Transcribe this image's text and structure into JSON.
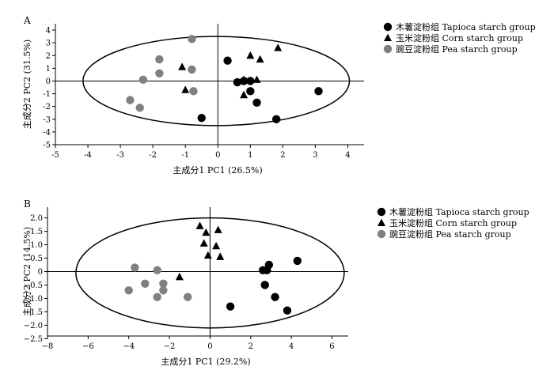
{
  "chart_data": [
    {
      "type": "scatter",
      "panel_label": "A",
      "xlabel": "主成分1 PC1 (26.5%)",
      "ylabel": "主成分2 PC2 (31.5%)",
      "xlim": [
        -5,
        4.5
      ],
      "ylim": [
        -5,
        4.5
      ],
      "xticks": [
        "-5",
        "-4",
        "-3",
        "-2",
        "-1",
        "0",
        "1",
        "2",
        "3",
        "4"
      ],
      "yticks": [
        "4",
        "3",
        "2",
        "1",
        "0",
        "-1",
        "-2",
        "-3",
        "-4",
        "-5"
      ],
      "ellipse": {
        "cx": -0.05,
        "cy": 0,
        "rx": 4.1,
        "ry": 3.5
      },
      "legend_position": "right",
      "series": [
        {
          "name": "木薯淀粉组 Tapioca starch group",
          "marker": "circle",
          "color": "#000000",
          "points": [
            [
              0.3,
              1.6
            ],
            [
              0.6,
              -0.1
            ],
            [
              0.8,
              0.0
            ],
            [
              1.0,
              0.0
            ],
            [
              1.0,
              -0.8
            ],
            [
              1.2,
              -1.7
            ],
            [
              1.8,
              -3.0
            ],
            [
              3.1,
              -0.8
            ],
            [
              -0.5,
              -2.9
            ]
          ]
        },
        {
          "name": "玉米淀粉组 Corn starch group",
          "marker": "triangle",
          "color": "#000000",
          "points": [
            [
              -1.1,
              1.1
            ],
            [
              -1.0,
              -0.7
            ],
            [
              0.8,
              0.1
            ],
            [
              1.0,
              2.0
            ],
            [
              1.3,
              1.7
            ],
            [
              1.85,
              2.6
            ],
            [
              1.2,
              0.1
            ],
            [
              0.8,
              -1.1
            ]
          ]
        },
        {
          "name": "豌豆淀粉组 Pea starch group",
          "marker": "circle",
          "color": "#808080",
          "points": [
            [
              -0.8,
              3.3
            ],
            [
              -1.8,
              1.7
            ],
            [
              -0.8,
              0.9
            ],
            [
              -1.8,
              0.6
            ],
            [
              -2.3,
              0.1
            ],
            [
              -0.75,
              -0.8
            ],
            [
              -2.7,
              -1.5
            ],
            [
              -2.4,
              -2.1
            ]
          ]
        }
      ]
    },
    {
      "type": "scatter",
      "panel_label": "B",
      "xlabel": "主成分1 PC1 (29.2%)",
      "ylabel": "主成分2 PC2 (14.5%)",
      "xlim": [
        -8,
        6.8
      ],
      "ylim": [
        -2.4,
        2.4
      ],
      "xticks": [
        "−8",
        "−6",
        "−4",
        "−2",
        "0",
        "2",
        "4",
        "6"
      ],
      "yticks": [
        "2.0",
        "1.5",
        "1.0",
        "0.5",
        "0",
        "−0.5",
        "−1.0",
        "−1.5",
        "−2.0",
        "−2.5"
      ],
      "ellipse": {
        "cx": 0,
        "cy": -0.05,
        "rx": 6.6,
        "ry": 2.05
      },
      "legend_position": "right",
      "series": [
        {
          "name": "木薯淀粉组 Tapioca starch group",
          "marker": "circle",
          "color": "#000000",
          "points": [
            [
              2.6,
              0.05
            ],
            [
              2.8,
              0.05
            ],
            [
              2.9,
              0.25
            ],
            [
              4.3,
              0.4
            ],
            [
              2.7,
              -0.5
            ],
            [
              3.2,
              -0.95
            ],
            [
              3.8,
              -1.45
            ],
            [
              1.0,
              -1.3
            ]
          ]
        },
        {
          "name": "玉米淀粉组 Corn starch group",
          "marker": "triangle",
          "color": "#000000",
          "points": [
            [
              -0.5,
              1.7
            ],
            [
              -0.2,
              1.45
            ],
            [
              0.4,
              1.55
            ],
            [
              -0.3,
              1.05
            ],
            [
              0.3,
              0.95
            ],
            [
              -0.1,
              0.6
            ],
            [
              0.5,
              0.55
            ],
            [
              -1.5,
              -0.2
            ]
          ]
        },
        {
          "name": "豌豆淀粉组 Pea starch group",
          "marker": "circle",
          "color": "#808080",
          "points": [
            [
              -3.7,
              0.15
            ],
            [
              -2.6,
              0.05
            ],
            [
              -3.2,
              -0.45
            ],
            [
              -2.3,
              -0.45
            ],
            [
              -4.0,
              -0.7
            ],
            [
              -2.3,
              -0.7
            ],
            [
              -2.6,
              -0.95
            ],
            [
              -1.1,
              -0.95
            ]
          ]
        }
      ]
    }
  ]
}
